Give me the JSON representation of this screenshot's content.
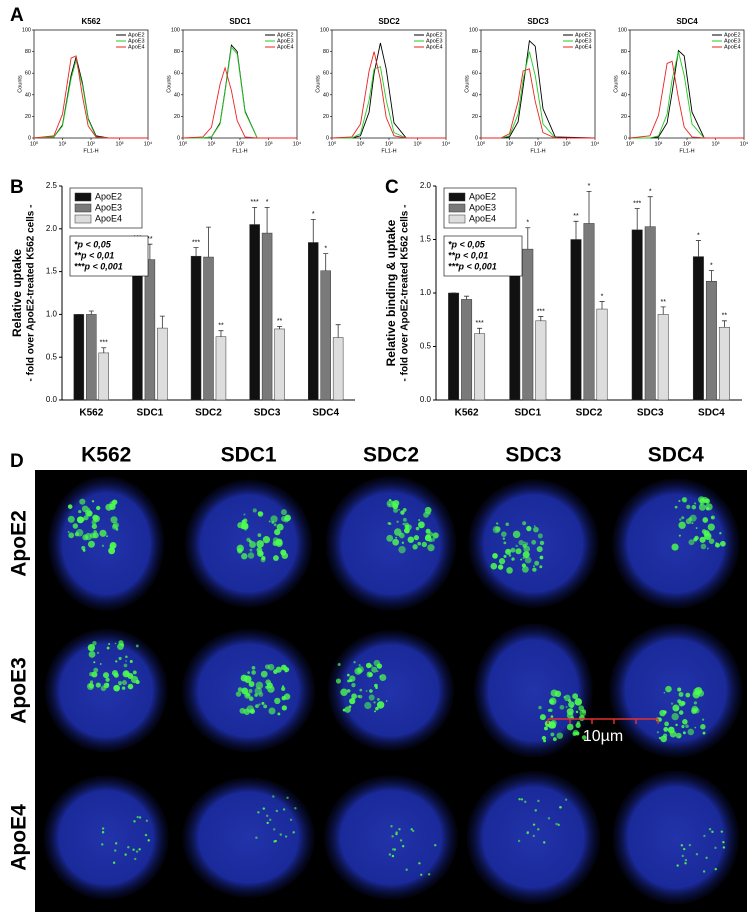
{
  "panel_labels": [
    "A",
    "B",
    "C",
    "D"
  ],
  "chart_data": [
    {
      "type": "line",
      "title": "K562",
      "xscale": "log",
      "legend": "upper right",
      "xlabel": "FL1-H",
      "ylabel": "Counts",
      "x": [
        1,
        5,
        10,
        20,
        30,
        50,
        80,
        150,
        400,
        10000
      ],
      "xlim": [
        1,
        10000
      ],
      "xticks": [
        {
          "value": 1,
          "label": "10⁰"
        },
        {
          "value": 10,
          "label": "10¹"
        },
        {
          "value": 100,
          "label": "10²"
        },
        {
          "value": 1000,
          "label": "10³"
        },
        {
          "value": 10000,
          "label": "10⁴"
        }
      ],
      "ylim": [
        0,
        100
      ],
      "yticks": [
        0,
        20,
        40,
        60,
        80,
        100
      ],
      "series": [
        {
          "name": "ApoE2",
          "color": "#000000",
          "values": [
            0,
            1,
            12,
            58,
            75,
            51,
            18,
            2,
            0,
            0
          ]
        },
        {
          "name": "ApoE3",
          "color": "#22cc22",
          "values": [
            0,
            1,
            11,
            55,
            72,
            49,
            17,
            1,
            0,
            0
          ]
        },
        {
          "name": "ApoE4",
          "color": "#ee2222",
          "values": [
            0,
            2,
            22,
            74,
            76,
            39,
            11,
            1,
            0,
            0
          ]
        }
      ]
    },
    {
      "type": "line",
      "title": "SDC1",
      "xscale": "log",
      "legend": "upper right",
      "xlabel": "FL1-H",
      "ylabel": "Counts",
      "x": [
        1,
        5,
        10,
        20,
        30,
        50,
        80,
        150,
        400,
        10000
      ],
      "xlim": [
        1,
        10000
      ],
      "xticks": [
        {
          "value": 1,
          "label": "10⁰"
        },
        {
          "value": 10,
          "label": "10¹"
        },
        {
          "value": 100,
          "label": "10²"
        },
        {
          "value": 1000,
          "label": "10³"
        },
        {
          "value": 10000,
          "label": "10⁴"
        }
      ],
      "ylim": [
        0,
        100
      ],
      "yticks": [
        0,
        20,
        40,
        60,
        80,
        100
      ],
      "series": [
        {
          "name": "ApoE2",
          "color": "#000000",
          "values": [
            0,
            0,
            1,
            14,
            44,
            86,
            80,
            25,
            0,
            0
          ]
        },
        {
          "name": "ApoE3",
          "color": "#22cc22",
          "values": [
            0,
            0,
            1,
            13,
            43,
            84,
            78,
            24,
            0,
            0
          ]
        },
        {
          "name": "ApoE4",
          "color": "#ee2222",
          "values": [
            0,
            1,
            10,
            50,
            65,
            44,
            16,
            1,
            0,
            0
          ]
        }
      ]
    },
    {
      "type": "line",
      "title": "SDC2",
      "xscale": "log",
      "legend": "upper right",
      "xlabel": "FL1-H",
      "ylabel": "Counts",
      "x": [
        1,
        5,
        10,
        20,
        30,
        50,
        80,
        150,
        400,
        10000
      ],
      "xlim": [
        1,
        10000
      ],
      "xticks": [
        {
          "value": 1,
          "label": "10⁰"
        },
        {
          "value": 10,
          "label": "10¹"
        },
        {
          "value": 100,
          "label": "10²"
        },
        {
          "value": 1000,
          "label": "10³"
        },
        {
          "value": 10000,
          "label": "10⁴"
        }
      ],
      "ylim": [
        0,
        100
      ],
      "yticks": [
        0,
        20,
        40,
        60,
        80,
        100
      ],
      "series": [
        {
          "name": "ApoE2",
          "color": "#000000",
          "values": [
            0,
            0,
            2,
            24,
            60,
            88,
            64,
            14,
            0,
            0
          ]
        },
        {
          "name": "ApoE3",
          "color": "#22cc22",
          "values": [
            0,
            0,
            4,
            35,
            64,
            66,
            35,
            5,
            0,
            0
          ]
        },
        {
          "name": "ApoE4",
          "color": "#ee2222",
          "values": [
            0,
            1,
            13,
            62,
            80,
            54,
            19,
            2,
            0,
            0
          ]
        }
      ]
    },
    {
      "type": "line",
      "title": "SDC3",
      "xscale": "log",
      "legend": "upper right",
      "xlabel": "FL1-H",
      "ylabel": "Counts",
      "x": [
        1,
        5,
        10,
        20,
        30,
        50,
        80,
        150,
        400,
        10000
      ],
      "xlim": [
        1,
        10000
      ],
      "xticks": [
        {
          "value": 1,
          "label": "10⁰"
        },
        {
          "value": 10,
          "label": "10¹"
        },
        {
          "value": 100,
          "label": "10²"
        },
        {
          "value": 1000,
          "label": "10³"
        },
        {
          "value": 10000,
          "label": "10⁴"
        }
      ],
      "ylim": [
        0,
        100
      ],
      "yticks": [
        0,
        20,
        40,
        60,
        80,
        100
      ],
      "series": [
        {
          "name": "ApoE2",
          "color": "#000000",
          "values": [
            0,
            0,
            1,
            15,
            47,
            90,
            85,
            27,
            1,
            0
          ]
        },
        {
          "name": "ApoE3",
          "color": "#22cc22",
          "values": [
            0,
            0,
            2,
            22,
            54,
            80,
            58,
            13,
            0,
            0
          ]
        },
        {
          "name": "ApoE4",
          "color": "#ee2222",
          "values": [
            0,
            0,
            4,
            34,
            62,
            64,
            34,
            5,
            0,
            0
          ]
        }
      ]
    },
    {
      "type": "line",
      "title": "SDC4",
      "xscale": "log",
      "legend": "upper right",
      "xlabel": "FL1-H",
      "ylabel": "Counts",
      "x": [
        1,
        5,
        10,
        20,
        30,
        50,
        80,
        150,
        400,
        10000
      ],
      "xlim": [
        1,
        10000
      ],
      "xticks": [
        {
          "value": 1,
          "label": "10⁰"
        },
        {
          "value": 10,
          "label": "10¹"
        },
        {
          "value": 100,
          "label": "10²"
        },
        {
          "value": 1000,
          "label": "10³"
        },
        {
          "value": 10000,
          "label": "10⁴"
        }
      ],
      "ylim": [
        0,
        100
      ],
      "yticks": [
        0,
        20,
        40,
        60,
        80,
        100
      ],
      "series": [
        {
          "name": "ApoE2",
          "color": "#000000",
          "values": [
            0,
            0,
            1,
            14,
            42,
            81,
            76,
            24,
            0,
            0
          ]
        },
        {
          "name": "ApoE3",
          "color": "#22cc22",
          "values": [
            0,
            0,
            2,
            22,
            54,
            80,
            58,
            13,
            0,
            0
          ]
        },
        {
          "name": "ApoE4",
          "color": "#ee2222",
          "values": [
            0,
            2,
            21,
            69,
            71,
            37,
            10,
            1,
            0,
            0
          ]
        }
      ]
    },
    {
      "type": "bar",
      "ylabel": "Relative uptake",
      "ylabel_sub": "- fold over ApoE2-treated K562 cells -",
      "legend": "upper left",
      "notes": [
        "*p < 0,05",
        "**p < 0,01",
        "***p < 0,001"
      ],
      "categories": [
        "K562",
        "SDC1",
        "SDC2",
        "SDC3",
        "SDC4"
      ],
      "ylim": [
        0,
        2.5
      ],
      "yticks": [
        {
          "value": 0,
          "label": "0.0"
        },
        {
          "value": 0.5,
          "label": "0.5"
        },
        {
          "value": 1,
          "label": "1.0"
        },
        {
          "value": 1.5,
          "label": "1.5"
        },
        {
          "value": 2,
          "label": "2.0"
        },
        {
          "value": 2.5,
          "label": "2.5"
        }
      ],
      "series": [
        {
          "name": "ApoE2",
          "color": "#111111",
          "values": [
            1.0,
            1.73,
            1.68,
            2.05,
            1.84
          ],
          "errors": [
            0,
            0.1,
            0.1,
            0.2,
            0.27
          ],
          "annotations": [
            null,
            "***",
            "***",
            "***",
            "*"
          ]
        },
        {
          "name": "ApoE3",
          "color": "#7a7a7a",
          "values": [
            1.0,
            1.64,
            1.67,
            1.95,
            1.51
          ],
          "errors": [
            0.04,
            0.18,
            0.35,
            0.3,
            0.2
          ],
          "annotations": [
            null,
            "**",
            null,
            "*",
            "*"
          ]
        },
        {
          "name": "ApoE4",
          "color": "#dddddd",
          "values": [
            0.55,
            0.84,
            0.74,
            0.83,
            0.73
          ],
          "errors": [
            0.06,
            0.14,
            0.07,
            0.03,
            0.15
          ],
          "annotations": [
            "***",
            null,
            "**",
            "**",
            null
          ]
        }
      ]
    },
    {
      "type": "bar",
      "ylabel": "Relative binding & uptake",
      "ylabel_sub": "- fold over ApoE2-treated K562 cells -",
      "legend": "upper left",
      "notes": [
        "*p < 0,05",
        "**p < 0,01",
        "***p < 0,001"
      ],
      "categories": [
        "K562",
        "SDC1",
        "SDC2",
        "SDC3",
        "SDC4"
      ],
      "ylim": [
        0,
        2
      ],
      "yticks": [
        {
          "value": 0,
          "label": "0.0"
        },
        {
          "value": 0.5,
          "label": "0.5"
        },
        {
          "value": 1,
          "label": "1.0"
        },
        {
          "value": 1.5,
          "label": "1.5"
        },
        {
          "value": 2,
          "label": "2.0"
        }
      ],
      "series": [
        {
          "name": "ApoE2",
          "color": "#111111",
          "values": [
            1.0,
            1.27,
            1.5,
            1.59,
            1.34
          ],
          "errors": [
            0,
            0.07,
            0.17,
            0.2,
            0.15
          ],
          "annotations": [
            null,
            "**",
            "**",
            "***",
            "*"
          ]
        },
        {
          "name": "ApoE3",
          "color": "#7a7a7a",
          "values": [
            0.94,
            1.41,
            1.65,
            1.62,
            1.11
          ],
          "errors": [
            0.03,
            0.2,
            0.3,
            0.28,
            0.1
          ],
          "annotations": [
            null,
            "*",
            "*",
            "*",
            "*"
          ]
        },
        {
          "name": "ApoE4",
          "color": "#dddddd",
          "values": [
            0.62,
            0.74,
            0.85,
            0.8,
            0.68
          ],
          "errors": [
            0.05,
            0.04,
            0.07,
            0.07,
            0.06
          ],
          "annotations": [
            "***",
            "***",
            "*",
            "**",
            "**"
          ]
        }
      ]
    }
  ],
  "microscopy": {
    "columns": [
      "K562",
      "SDC1",
      "SDC2",
      "SDC3",
      "SDC4"
    ],
    "rows": [
      "ApoE2",
      "ApoE3",
      "ApoE4"
    ],
    "scale_bar": "10µm"
  }
}
